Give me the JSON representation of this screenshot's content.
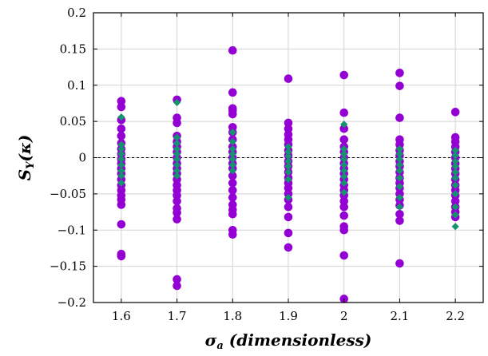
{
  "chart_data": {
    "type": "scatter",
    "xlabel": "σ_a (dimensionless)",
    "ylabel": "S_Y(κ)",
    "xlabel_parts": {
      "symbol": "σ",
      "subscript": "a",
      "rest": " (dimensionless)"
    },
    "ylabel_parts": {
      "symbol": "S",
      "subscript": "Y",
      "rest": "(κ)"
    },
    "xlim": [
      1.55,
      2.25
    ],
    "ylim": [
      -0.2,
      0.2
    ],
    "x_ticks": [
      1.6,
      1.7,
      1.8,
      1.9,
      2.0,
      2.1,
      2.2
    ],
    "x_tick_labels": [
      "1.6",
      "1.7",
      "1.8",
      "1.9",
      "2",
      "2.1",
      "2.2"
    ],
    "y_ticks": [
      -0.2,
      -0.15,
      -0.1,
      -0.05,
      0,
      0.05,
      0.1,
      0.15,
      0.2
    ],
    "y_tick_labels": [
      "−0.2",
      "−0.15",
      "−0.1",
      "−0.05",
      "0",
      "0.05",
      "0.1",
      "0.15",
      "0.2"
    ],
    "grid": true,
    "zero_line": true,
    "series": [
      {
        "marker": "circle",
        "color": "#9400D3",
        "points": [
          [
            1.6,
            0.078
          ],
          [
            1.6,
            0.07
          ],
          [
            1.6,
            0.052
          ],
          [
            1.6,
            0.04
          ],
          [
            1.6,
            0.03
          ],
          [
            1.6,
            0.02
          ],
          [
            1.6,
            0.012
          ],
          [
            1.6,
            0.005
          ],
          [
            1.6,
            -0.002
          ],
          [
            1.6,
            -0.008
          ],
          [
            1.6,
            -0.015
          ],
          [
            1.6,
            -0.022
          ],
          [
            1.6,
            -0.03
          ],
          [
            1.6,
            -0.038
          ],
          [
            1.6,
            -0.045
          ],
          [
            1.6,
            -0.052
          ],
          [
            1.6,
            -0.058
          ],
          [
            1.6,
            -0.065
          ],
          [
            1.6,
            -0.092
          ],
          [
            1.6,
            -0.133
          ],
          [
            1.6,
            -0.136
          ],
          [
            1.7,
            0.08
          ],
          [
            1.7,
            0.055
          ],
          [
            1.7,
            0.048
          ],
          [
            1.7,
            0.03
          ],
          [
            1.7,
            0.022
          ],
          [
            1.7,
            0.015
          ],
          [
            1.7,
            0.008
          ],
          [
            1.7,
            0.0
          ],
          [
            1.7,
            -0.008
          ],
          [
            1.7,
            -0.015
          ],
          [
            1.7,
            -0.022
          ],
          [
            1.7,
            -0.03
          ],
          [
            1.7,
            -0.038
          ],
          [
            1.7,
            -0.045
          ],
          [
            1.7,
            -0.052
          ],
          [
            1.7,
            -0.06
          ],
          [
            1.7,
            -0.07
          ],
          [
            1.7,
            -0.076
          ],
          [
            1.7,
            -0.085
          ],
          [
            1.7,
            -0.168
          ],
          [
            1.7,
            -0.177
          ],
          [
            1.8,
            0.148
          ],
          [
            1.8,
            0.09
          ],
          [
            1.8,
            0.068
          ],
          [
            1.8,
            0.065
          ],
          [
            1.8,
            0.06
          ],
          [
            1.8,
            0.042
          ],
          [
            1.8,
            0.035
          ],
          [
            1.8,
            0.025
          ],
          [
            1.8,
            0.015
          ],
          [
            1.8,
            0.008
          ],
          [
            1.8,
            0.0
          ],
          [
            1.8,
            -0.008
          ],
          [
            1.8,
            -0.015
          ],
          [
            1.8,
            -0.025
          ],
          [
            1.8,
            -0.035
          ],
          [
            1.8,
            -0.045
          ],
          [
            1.8,
            -0.055
          ],
          [
            1.8,
            -0.065
          ],
          [
            1.8,
            -0.072
          ],
          [
            1.8,
            -0.078
          ],
          [
            1.8,
            -0.1
          ],
          [
            1.8,
            -0.106
          ],
          [
            1.9,
            0.109
          ],
          [
            1.9,
            0.048
          ],
          [
            1.9,
            0.04
          ],
          [
            1.9,
            0.032
          ],
          [
            1.9,
            0.025
          ],
          [
            1.9,
            0.018
          ],
          [
            1.9,
            0.01
          ],
          [
            1.9,
            0.003
          ],
          [
            1.9,
            -0.005
          ],
          [
            1.9,
            -0.012
          ],
          [
            1.9,
            -0.02
          ],
          [
            1.9,
            -0.028
          ],
          [
            1.9,
            -0.035
          ],
          [
            1.9,
            -0.042
          ],
          [
            1.9,
            -0.05
          ],
          [
            1.9,
            -0.058
          ],
          [
            1.9,
            -0.068
          ],
          [
            1.9,
            -0.082
          ],
          [
            1.9,
            -0.104
          ],
          [
            1.9,
            -0.124
          ],
          [
            2.0,
            0.114
          ],
          [
            2.0,
            0.062
          ],
          [
            2.0,
            0.04
          ],
          [
            2.0,
            0.025
          ],
          [
            2.0,
            0.015
          ],
          [
            2.0,
            0.008
          ],
          [
            2.0,
            0.0
          ],
          [
            2.0,
            -0.008
          ],
          [
            2.0,
            -0.015
          ],
          [
            2.0,
            -0.022
          ],
          [
            2.0,
            -0.03
          ],
          [
            2.0,
            -0.038
          ],
          [
            2.0,
            -0.045
          ],
          [
            2.0,
            -0.052
          ],
          [
            2.0,
            -0.06
          ],
          [
            2.0,
            -0.068
          ],
          [
            2.0,
            -0.08
          ],
          [
            2.0,
            -0.095
          ],
          [
            2.0,
            -0.1
          ],
          [
            2.0,
            -0.135
          ],
          [
            2.0,
            -0.195
          ],
          [
            2.1,
            0.117
          ],
          [
            2.1,
            0.099
          ],
          [
            2.1,
            0.055
          ],
          [
            2.1,
            0.025
          ],
          [
            2.1,
            0.018
          ],
          [
            2.1,
            0.01
          ],
          [
            2.1,
            0.003
          ],
          [
            2.1,
            -0.005
          ],
          [
            2.1,
            -0.012
          ],
          [
            2.1,
            -0.02
          ],
          [
            2.1,
            -0.028
          ],
          [
            2.1,
            -0.035
          ],
          [
            2.1,
            -0.042
          ],
          [
            2.1,
            -0.05
          ],
          [
            2.1,
            -0.058
          ],
          [
            2.1,
            -0.066
          ],
          [
            2.1,
            -0.078
          ],
          [
            2.1,
            -0.087
          ],
          [
            2.1,
            -0.146
          ],
          [
            2.2,
            0.063
          ],
          [
            2.2,
            0.028
          ],
          [
            2.2,
            0.022
          ],
          [
            2.2,
            0.015
          ],
          [
            2.2,
            0.008
          ],
          [
            2.2,
            0.0
          ],
          [
            2.2,
            -0.008
          ],
          [
            2.2,
            -0.015
          ],
          [
            2.2,
            -0.022
          ],
          [
            2.2,
            -0.03
          ],
          [
            2.2,
            -0.038
          ],
          [
            2.2,
            -0.045
          ],
          [
            2.2,
            -0.052
          ],
          [
            2.2,
            -0.06
          ],
          [
            2.2,
            -0.068
          ],
          [
            2.2,
            -0.075
          ],
          [
            2.2,
            -0.082
          ]
        ]
      },
      {
        "marker": "diamond",
        "color": "#13946E",
        "points": [
          [
            1.6,
            0.056
          ],
          [
            1.6,
            0.018
          ],
          [
            1.6,
            0.012
          ],
          [
            1.6,
            0.005
          ],
          [
            1.6,
            -0.002
          ],
          [
            1.6,
            -0.01
          ],
          [
            1.6,
            -0.018
          ],
          [
            1.6,
            -0.025
          ],
          [
            1.6,
            -0.035
          ],
          [
            1.7,
            0.076
          ],
          [
            1.7,
            0.028
          ],
          [
            1.7,
            0.02
          ],
          [
            1.7,
            0.012
          ],
          [
            1.7,
            0.005
          ],
          [
            1.7,
            -0.002
          ],
          [
            1.7,
            -0.01
          ],
          [
            1.7,
            -0.018
          ],
          [
            1.7,
            -0.025
          ],
          [
            1.8,
            0.035
          ],
          [
            1.8,
            0.022
          ],
          [
            1.8,
            0.012
          ],
          [
            1.8,
            0.005
          ],
          [
            1.8,
            -0.002
          ],
          [
            1.8,
            -0.01
          ],
          [
            1.8,
            -0.018
          ],
          [
            1.9,
            0.015
          ],
          [
            1.9,
            0.008
          ],
          [
            1.9,
            0.002
          ],
          [
            1.9,
            -0.005
          ],
          [
            1.9,
            -0.012
          ],
          [
            1.9,
            -0.02
          ],
          [
            1.9,
            -0.03
          ],
          [
            1.9,
            -0.055
          ],
          [
            2.0,
            0.046
          ],
          [
            2.0,
            0.012
          ],
          [
            2.0,
            0.005
          ],
          [
            2.0,
            -0.002
          ],
          [
            2.0,
            -0.01
          ],
          [
            2.0,
            -0.018
          ],
          [
            2.0,
            -0.026
          ],
          [
            2.0,
            -0.035
          ],
          [
            2.0,
            -0.048
          ],
          [
            2.1,
            0.012
          ],
          [
            2.1,
            0.005
          ],
          [
            2.1,
            -0.002
          ],
          [
            2.1,
            -0.01
          ],
          [
            2.1,
            -0.018
          ],
          [
            2.1,
            -0.028
          ],
          [
            2.1,
            -0.04
          ],
          [
            2.1,
            -0.055
          ],
          [
            2.1,
            -0.068
          ],
          [
            2.2,
            0.01
          ],
          [
            2.2,
            0.003
          ],
          [
            2.2,
            -0.005
          ],
          [
            2.2,
            -0.012
          ],
          [
            2.2,
            -0.02
          ],
          [
            2.2,
            -0.028
          ],
          [
            2.2,
            -0.038
          ],
          [
            2.2,
            -0.05
          ],
          [
            2.2,
            -0.068
          ],
          [
            2.2,
            -0.079
          ],
          [
            2.2,
            -0.095
          ]
        ]
      }
    ]
  }
}
